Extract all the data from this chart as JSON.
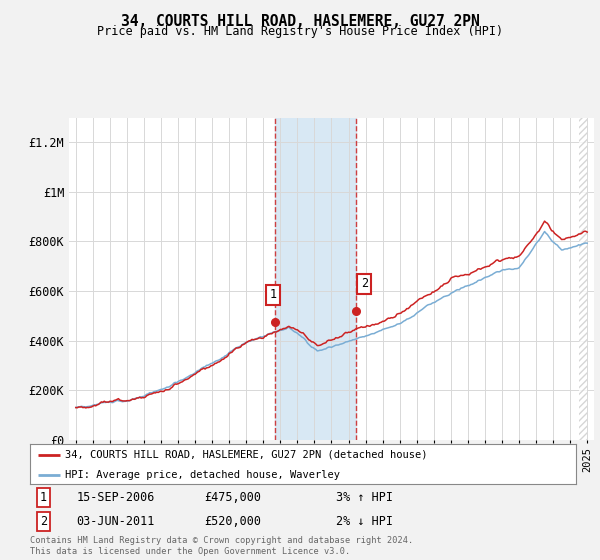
{
  "title_line1": "34, COURTS HILL ROAD, HASLEMERE, GU27 2PN",
  "title_line2": "Price paid vs. HM Land Registry's House Price Index (HPI)",
  "ylim": [
    0,
    1300000
  ],
  "yticks": [
    0,
    200000,
    400000,
    600000,
    800000,
    1000000,
    1200000
  ],
  "ytick_labels": [
    "£0",
    "£200K",
    "£400K",
    "£600K",
    "£800K",
    "£1M",
    "£1.2M"
  ],
  "hpi_color": "#7aadd4",
  "price_color": "#cc2222",
  "sale1_date": "15-SEP-2006",
  "sale1_price": 475000,
  "sale1_pct": "3% ↑ HPI",
  "sale2_date": "03-JUN-2011",
  "sale2_price": 520000,
  "sale2_pct": "2% ↓ HPI",
  "legend_line1": "34, COURTS HILL ROAD, HASLEMERE, GU27 2PN (detached house)",
  "legend_line2": "HPI: Average price, detached house, Waverley",
  "footer": "Contains HM Land Registry data © Crown copyright and database right 2024.\nThis data is licensed under the Open Government Licence v3.0.",
  "bg_color": "#f2f2f2",
  "plot_bg_color": "#ffffff",
  "shade_color": "#d8e8f4",
  "sale1_x_year": 2006.71,
  "sale2_x_year": 2011.42,
  "xmin": 1994.6,
  "xmax": 2025.4
}
